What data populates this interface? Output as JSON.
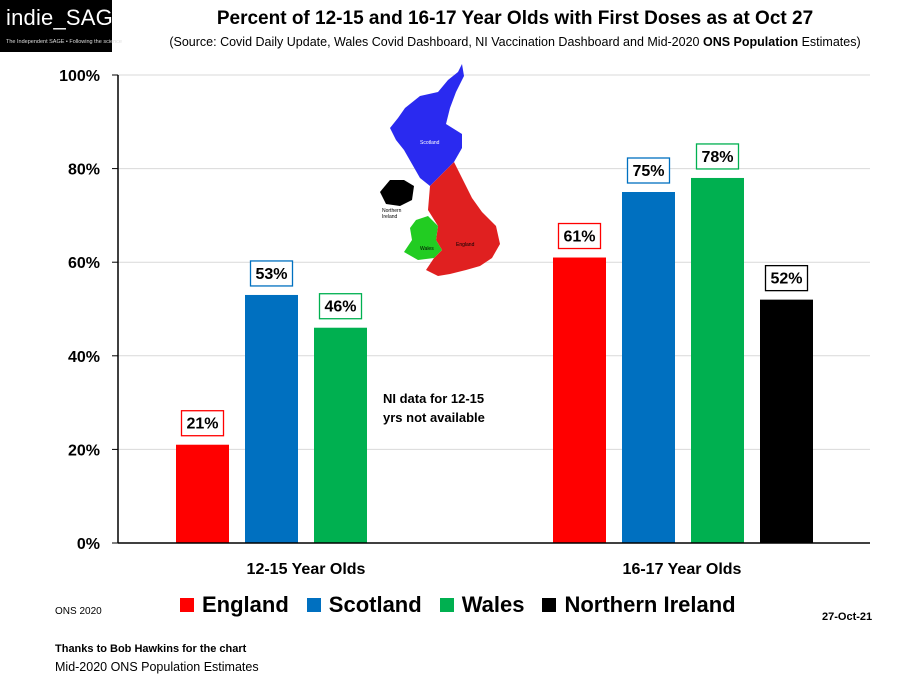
{
  "logo": {
    "name": "indie_SAGE",
    "tagline": "The Independent SAGE • Following the science"
  },
  "header": {
    "title": "Percent of 12-15 and 16-17 Year Olds with First Doses as at Oct 27",
    "subtitle_pre": "(Source: Covid Daily Update, Wales Covid Dashboard, NI Vaccination Dashboard and Mid-2020 ",
    "subtitle_bold": "ONS Population",
    "subtitle_post": " Estimates)"
  },
  "chart_data": {
    "type": "bar",
    "categories": [
      "12-15 Year Olds",
      "16-17 Year Olds"
    ],
    "series": [
      {
        "name": "England",
        "color": "#ff0000",
        "values": [
          21,
          61
        ],
        "labels": [
          "21%",
          "61%"
        ]
      },
      {
        "name": "Scotland",
        "color": "#0070c0",
        "values": [
          53,
          75
        ],
        "labels": [
          "53%",
          "75%"
        ]
      },
      {
        "name": "Wales",
        "color": "#00b050",
        "values": [
          46,
          78
        ],
        "labels": [
          "46%",
          "78%"
        ]
      },
      {
        "name": "Northern Ireland",
        "color": "#000000",
        "values": [
          null,
          52
        ],
        "labels": [
          "",
          "52%"
        ]
      }
    ],
    "ylim": [
      0,
      100
    ],
    "yticks": [
      "0%",
      "20%",
      "40%",
      "60%",
      "80%",
      "100%"
    ],
    "legend_position": "bottom",
    "grid": true
  },
  "annotation": "NI data for 12-15 yrs not available",
  "map": {
    "labels": [
      "Scotland",
      "Northern Ireland",
      "Wales",
      "England"
    ]
  },
  "footer": {
    "ons": "ONS 2020",
    "date": "27-Oct-21",
    "thanks": "Thanks to Bob Hawkins for the chart",
    "source": "Mid-2020 ONS Population Estimates"
  }
}
